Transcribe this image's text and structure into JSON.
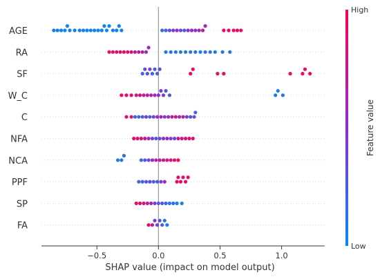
{
  "chart_data": {
    "type": "scatter",
    "subtype": "shap-beeswarm",
    "title": "",
    "xlabel": "SHAP value (impact on model output)",
    "xlim": [
      -0.95,
      1.35
    ],
    "xticks": [
      -0.5,
      0.0,
      0.5,
      1.0
    ],
    "xtick_labels": [
      "−0.5",
      "0.0",
      "0.5",
      "1.0"
    ],
    "zero_line": true,
    "grid": false,
    "features": [
      "AGE",
      "RA",
      "SF",
      "W_C",
      "C",
      "NFA",
      "NCA",
      "PPF",
      "SP",
      "FA"
    ],
    "colorbar": {
      "label": "Feature value",
      "high_label": "High",
      "low_label": "Low",
      "colors": [
        "#008bfb",
        "#8e2dd6",
        "#ff0052"
      ]
    },
    "series": [
      {
        "feature": "AGE",
        "x": [
          -0.85,
          -0.82,
          -0.79,
          -0.76,
          -0.74,
          -0.72,
          -0.68,
          -0.64,
          -0.61,
          -0.58,
          -0.55,
          -0.52,
          -0.49,
          -0.46,
          -0.44,
          -0.42,
          -0.4,
          -0.37,
          -0.34,
          -0.32,
          -0.3,
          0.03,
          0.06,
          0.09,
          0.12,
          0.15,
          0.18,
          0.21,
          0.24,
          0.27,
          0.3,
          0.33,
          0.36,
          0.38,
          0.53,
          0.57,
          0.61,
          0.64,
          0.67
        ],
        "values": [
          0.05,
          0.05,
          0.04,
          0.06,
          0.05,
          0.04,
          0.05,
          0.06,
          0.04,
          0.05,
          0.06,
          0.05,
          0.04,
          0.05,
          0.06,
          0.05,
          0.05,
          0.06,
          0.04,
          0.05,
          0.05,
          0.15,
          0.25,
          0.35,
          0.45,
          0.55,
          0.4,
          0.3,
          0.5,
          0.6,
          0.45,
          0.65,
          0.7,
          0.55,
          0.95,
          0.95,
          0.95,
          0.92,
          0.95
        ]
      },
      {
        "feature": "RA",
        "x": [
          -0.4,
          -0.37,
          -0.34,
          -0.31,
          -0.28,
          -0.25,
          -0.22,
          -0.19,
          -0.16,
          -0.13,
          -0.1,
          -0.08,
          0.06,
          0.1,
          0.14,
          0.18,
          0.22,
          0.26,
          0.3,
          0.34,
          0.38,
          0.42,
          0.46,
          0.52,
          0.58
        ],
        "values": [
          0.95,
          0.92,
          0.9,
          0.88,
          0.95,
          0.85,
          0.8,
          0.75,
          0.7,
          0.65,
          0.6,
          0.55,
          0.1,
          0.12,
          0.15,
          0.08,
          0.12,
          0.1,
          0.15,
          0.05,
          0.12,
          0.1,
          0.08,
          0.1,
          0.12
        ]
      },
      {
        "feature": "SF",
        "x": [
          -0.13,
          -0.11,
          -0.09,
          -0.07,
          -0.05,
          -0.03,
          -0.01,
          0.01,
          0.26,
          0.28,
          0.48,
          0.53,
          1.07,
          1.17,
          1.19,
          1.23
        ],
        "values": [
          0.25,
          0.35,
          0.3,
          0.4,
          0.2,
          0.3,
          0.25,
          0.35,
          0.95,
          0.92,
          0.95,
          0.95,
          0.95,
          0.95,
          0.92,
          0.95
        ]
      },
      {
        "feature": "W_C",
        "x": [
          -0.3,
          -0.26,
          -0.22,
          -0.18,
          -0.15,
          -0.12,
          -0.09,
          -0.06,
          -0.03,
          0.0,
          0.02,
          0.04,
          0.06,
          0.09,
          0.95,
          0.97,
          1.01
        ],
        "values": [
          0.95,
          0.92,
          0.9,
          0.85,
          0.8,
          0.75,
          0.7,
          0.65,
          0.6,
          0.5,
          0.45,
          0.4,
          0.3,
          0.25,
          0.1,
          0.08,
          0.1
        ]
      },
      {
        "feature": "C",
        "x": [
          -0.26,
          -0.22,
          -0.19,
          -0.16,
          -0.13,
          -0.1,
          -0.07,
          -0.04,
          -0.01,
          0.02,
          0.05,
          0.08,
          0.11,
          0.14,
          0.17,
          0.2,
          0.23,
          0.26,
          0.29,
          0.3
        ],
        "values": [
          0.95,
          0.9,
          0.2,
          0.15,
          0.3,
          0.4,
          0.25,
          0.35,
          0.5,
          0.6,
          0.45,
          0.55,
          0.7,
          0.8,
          0.6,
          0.75,
          0.4,
          0.3,
          0.35,
          0.2
        ]
      },
      {
        "feature": "NFA",
        "x": [
          -0.2,
          -0.17,
          -0.14,
          -0.11,
          -0.08,
          -0.05,
          -0.02,
          0.01,
          0.04,
          0.07,
          0.1,
          0.13,
          0.16,
          0.19,
          0.22,
          0.25,
          0.28
        ],
        "values": [
          0.95,
          0.9,
          0.85,
          0.8,
          0.6,
          0.4,
          0.3,
          0.35,
          0.5,
          0.55,
          0.45,
          0.4,
          0.75,
          0.8,
          0.85,
          0.9,
          0.95
        ]
      },
      {
        "feature": "NCA",
        "x": [
          -0.33,
          -0.3,
          -0.28,
          -0.14,
          -0.11,
          -0.08,
          -0.05,
          -0.02,
          0.01,
          0.04,
          0.07,
          0.1,
          0.13,
          0.16
        ],
        "values": [
          0.1,
          0.08,
          0.12,
          0.2,
          0.3,
          0.4,
          0.55,
          0.65,
          0.7,
          0.75,
          0.8,
          0.85,
          0.9,
          0.95
        ]
      },
      {
        "feature": "PPF",
        "x": [
          -0.16,
          -0.13,
          -0.1,
          -0.07,
          -0.04,
          -0.01,
          0.02,
          0.05,
          0.15,
          0.16,
          0.18,
          0.2,
          0.22,
          0.24
        ],
        "values": [
          0.2,
          0.25,
          0.3,
          0.35,
          0.3,
          0.25,
          0.4,
          0.6,
          0.95,
          0.92,
          0.95,
          0.9,
          0.95,
          0.92
        ]
      },
      {
        "feature": "SP",
        "x": [
          -0.18,
          -0.15,
          -0.12,
          -0.09,
          -0.06,
          -0.03,
          0.0,
          0.03,
          0.06,
          0.09,
          0.12,
          0.15,
          0.19
        ],
        "values": [
          0.95,
          0.9,
          0.85,
          0.8,
          0.6,
          0.4,
          0.3,
          0.25,
          0.2,
          0.15,
          0.12,
          0.1,
          0.08
        ]
      },
      {
        "feature": "FA",
        "x": [
          -0.08,
          -0.05,
          -0.03,
          -0.01,
          0.01,
          0.03,
          0.05,
          0.07
        ],
        "values": [
          0.9,
          0.7,
          0.5,
          0.4,
          0.3,
          0.2,
          0.15,
          0.1
        ]
      }
    ]
  }
}
